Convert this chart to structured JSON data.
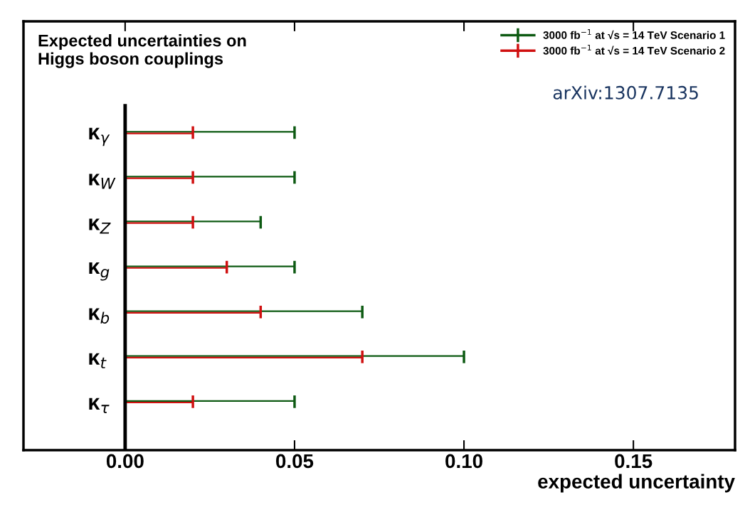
{
  "chart_data": {
    "type": "bar",
    "orientation": "horizontal",
    "title": "Expected uncertainties on\nHiggs boson couplings",
    "xlabel": "expected uncertainty",
    "categories": [
      "κ$_{γ}$",
      "κ$_{W}$",
      "κ$_{Z}$",
      "κ$_{g}$",
      "κ$_{b}$",
      "κ$_{t}$",
      "κ$_{τ}$"
    ],
    "series": [
      {
        "name": "3000 fb$^{−1}$ at √s = 14 TeV Scenario 1",
        "color": "#0d5a12",
        "values": [
          0.05,
          0.05,
          0.04,
          0.05,
          0.07,
          0.1,
          0.05
        ]
      },
      {
        "name": "3000 fb$^{−1}$ at √s = 14 TeV Scenario 2",
        "color": "#d01010",
        "values": [
          0.02,
          0.02,
          0.02,
          0.03,
          0.04,
          0.07,
          0.02
        ]
      }
    ],
    "xlim": [
      -0.03,
      0.18
    ],
    "xticks": [
      {
        "value": 0,
        "label": "0.00"
      },
      {
        "value": 0.05,
        "label": "0.05"
      },
      {
        "value": 0.1,
        "label": "0.10"
      },
      {
        "value": 0.15,
        "label": "0.15"
      }
    ],
    "annotations": [
      "arXiv:1307.7135"
    ],
    "legend": "top right",
    "grid": false
  }
}
